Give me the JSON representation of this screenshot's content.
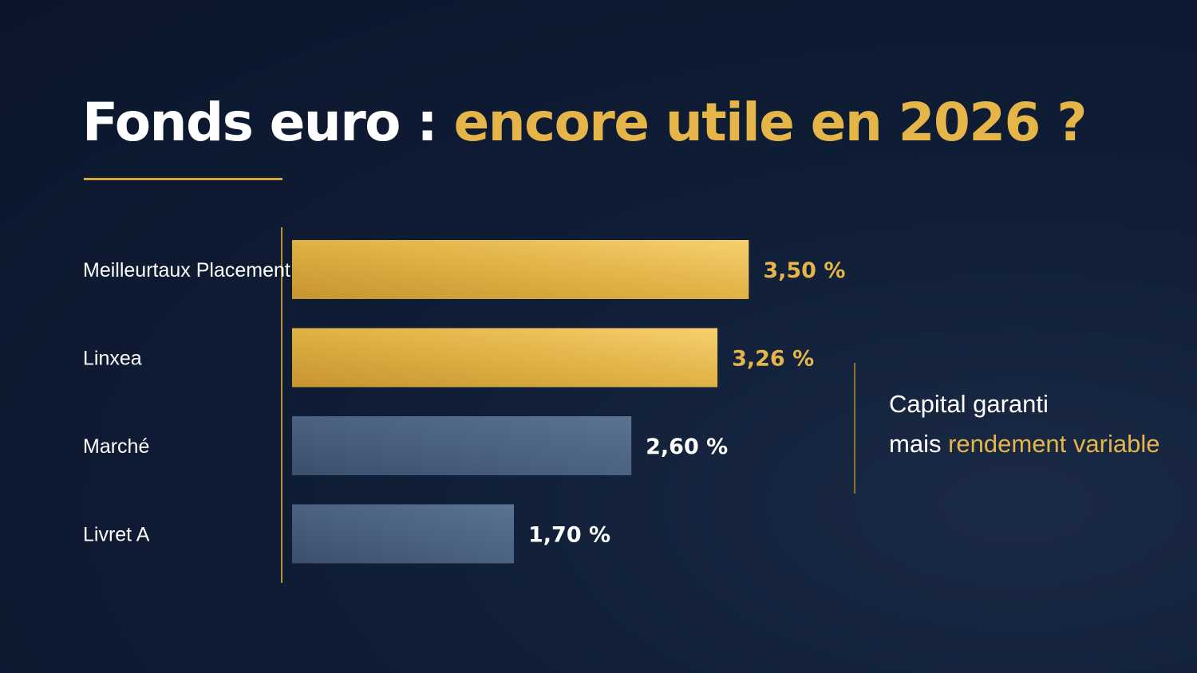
{
  "title": {
    "part1": "Fonds euro : ",
    "part2": "encore utile en 2026 ?"
  },
  "chart_data": {
    "type": "bar",
    "orientation": "horizontal",
    "categories": [
      "Meilleurtaux Placement",
      "Linxea",
      "Marché",
      "Livret A"
    ],
    "values": [
      3.5,
      3.26,
      2.6,
      1.7
    ],
    "value_labels": [
      "3,50 %",
      "3,26 %",
      "2,60 %",
      "1,70 %"
    ],
    "unit": "%",
    "xlim": [
      0,
      3.92
    ],
    "grid": false,
    "legend": "none",
    "highlight_colors": [
      "#e6b54a",
      "#e6b54a",
      "#ffffff",
      "#ffffff"
    ],
    "bar_styles": [
      "gold",
      "gold",
      "slate",
      "slate"
    ]
  },
  "note": {
    "line1": "Capital garanti",
    "line2_plain": "mais ",
    "line2_gold": "rendement variable"
  },
  "colors": {
    "background": "#0f1d36",
    "gold": "#e6b54a",
    "slate": "#4f6786",
    "text": "#ffffff"
  }
}
